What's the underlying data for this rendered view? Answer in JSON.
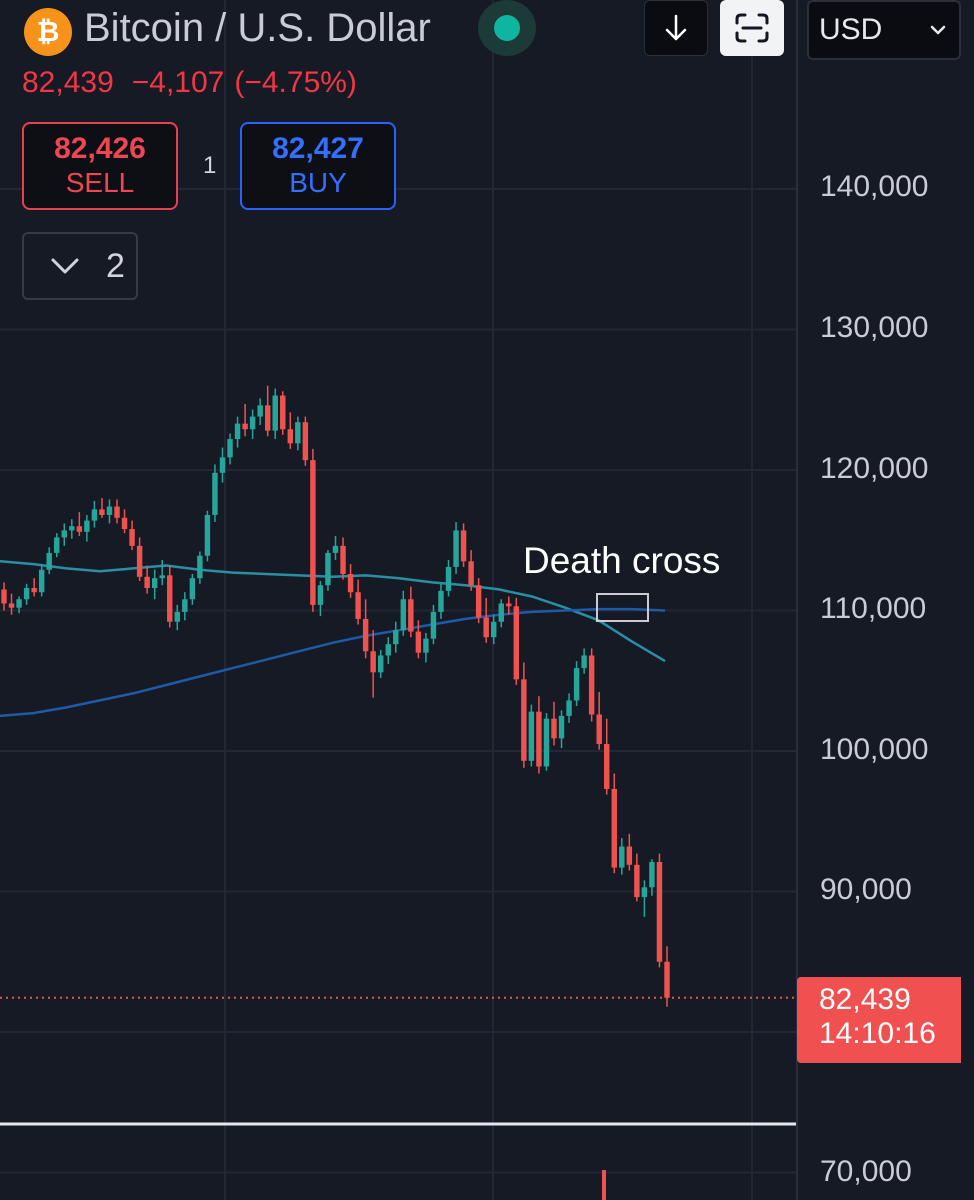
{
  "header": {
    "logo_glyph": "₿",
    "logo_icon": "bitcoin-logo-icon",
    "symbol_title": "Bitcoin / U.S. Dollar",
    "live_indicator_color": "#0fb59f",
    "download_icon": "arrow-down-icon",
    "fullscreen_icon": "fullscreen-icon",
    "currency": "USD",
    "currency_icon": "chevron-down-icon"
  },
  "quote": {
    "last_price": "82,439",
    "change": "−4,107",
    "change_percent": "(−4.75%)",
    "change_color": "#f23645"
  },
  "trade": {
    "sell_price": "82,426",
    "sell_label": "SELL",
    "spread": "1",
    "buy_price": "82,427",
    "buy_label": "BUY"
  },
  "indicators_toggle": {
    "icon": "chevron-down-icon",
    "count": "2"
  },
  "annotation": {
    "text": "Death cross"
  },
  "price_label": {
    "price": "82,439",
    "countdown": "14:10:16",
    "color": "#f0504f"
  },
  "chart_data": {
    "type": "candlestick",
    "y_axis_ticks": [
      "140,000",
      "130,000",
      "120,000",
      "110,000",
      "100,000",
      "90,000",
      "70,000"
    ],
    "y_axis_tick_values": [
      140000,
      130000,
      120000,
      110000,
      100000,
      90000,
      70000
    ],
    "ylim": [
      66000,
      153000
    ],
    "last_price": 82439,
    "up_color": "#26a69a",
    "down_color": "#ef5350",
    "grid": true,
    "series": [
      {
        "type": "ma",
        "color": "#2a8fa3",
        "values": [
          113500,
          113300,
          113000,
          112800,
          113000,
          113200,
          112900,
          112700,
          112600,
          112500,
          112400,
          112500,
          112300,
          112000,
          111800,
          111500,
          111000,
          110200,
          109300,
          107800,
          106400
        ]
      },
      {
        "type": "ma",
        "color": "#1e5aa8",
        "values": [
          102500,
          102700,
          103100,
          103600,
          104100,
          104700,
          105300,
          105900,
          106500,
          107100,
          107700,
          108200,
          108600,
          109000,
          109400,
          109700,
          109900,
          110000,
          110100,
          110100,
          110000
        ]
      }
    ],
    "candles": [
      [
        111500,
        112000,
        110000,
        110500
      ],
      [
        110500,
        111200,
        109700,
        110200
      ],
      [
        110200,
        111000,
        109800,
        110800
      ],
      [
        110800,
        111900,
        110400,
        111600
      ],
      [
        111600,
        112300,
        111000,
        111300
      ],
      [
        111300,
        113300,
        111000,
        112900
      ],
      [
        112900,
        114500,
        112600,
        114100
      ],
      [
        114100,
        115500,
        113800,
        115200
      ],
      [
        115200,
        116200,
        114600,
        115700
      ],
      [
        115700,
        116500,
        115100,
        116000
      ],
      [
        116000,
        117000,
        115300,
        115600
      ],
      [
        115600,
        116800,
        114900,
        116400
      ],
      [
        116400,
        117800,
        115900,
        117200
      ],
      [
        117200,
        118000,
        116600,
        116800
      ],
      [
        116800,
        117900,
        116200,
        117400
      ],
      [
        117400,
        117900,
        116200,
        116600
      ],
      [
        116600,
        117200,
        115500,
        115800
      ],
      [
        115800,
        116400,
        114300,
        114600
      ],
      [
        114600,
        115200,
        112100,
        112400
      ],
      [
        112400,
        113200,
        111200,
        111600
      ],
      [
        111600,
        112900,
        110800,
        112300
      ],
      [
        112300,
        113600,
        111800,
        112500
      ],
      [
        112500,
        113200,
        108800,
        109200
      ],
      [
        109200,
        110400,
        108600,
        109900
      ],
      [
        109900,
        111300,
        109300,
        110800
      ],
      [
        110800,
        112600,
        110400,
        112300
      ],
      [
        112300,
        114200,
        111900,
        113900
      ],
      [
        113900,
        117100,
        113500,
        116800
      ],
      [
        116800,
        120400,
        116300,
        119800
      ],
      [
        119800,
        121600,
        119100,
        120900
      ],
      [
        120900,
        122600,
        120400,
        122200
      ],
      [
        122200,
        123800,
        121600,
        123300
      ],
      [
        123300,
        124700,
        122400,
        122900
      ],
      [
        122900,
        124300,
        122200,
        123800
      ],
      [
        123800,
        125100,
        123200,
        124600
      ],
      [
        124600,
        126000,
        122400,
        122800
      ],
      [
        122800,
        125800,
        122200,
        125300
      ],
      [
        125300,
        125600,
        122500,
        122900
      ],
      [
        122900,
        124100,
        121500,
        121900
      ],
      [
        121900,
        123800,
        121400,
        123400
      ],
      [
        123400,
        123800,
        120300,
        120700
      ],
      [
        120700,
        121500,
        109900,
        110400
      ],
      [
        110400,
        112100,
        109600,
        111800
      ],
      [
        111800,
        114300,
        111400,
        114100
      ],
      [
        114100,
        115300,
        113600,
        114600
      ],
      [
        114600,
        115200,
        112200,
        112600
      ],
      [
        112600,
        113300,
        110900,
        111300
      ],
      [
        111300,
        112200,
        109000,
        109400
      ],
      [
        109400,
        110800,
        106600,
        107100
      ],
      [
        107100,
        108600,
        103800,
        105600
      ],
      [
        105600,
        107200,
        105200,
        106800
      ],
      [
        106800,
        108100,
        106200,
        107600
      ],
      [
        107600,
        109200,
        107000,
        108600
      ],
      [
        108600,
        111400,
        108200,
        110800
      ],
      [
        110800,
        111700,
        108100,
        108500
      ],
      [
        108500,
        109300,
        106600,
        107000
      ],
      [
        107000,
        108400,
        106300,
        108000
      ],
      [
        108000,
        110400,
        107600,
        109900
      ],
      [
        109900,
        111900,
        109400,
        111400
      ],
      [
        111400,
        113600,
        111000,
        113100
      ],
      [
        113100,
        116300,
        112600,
        115700
      ],
      [
        115700,
        116200,
        113100,
        113500
      ],
      [
        113500,
        114300,
        111400,
        111800
      ],
      [
        111800,
        112300,
        109100,
        109500
      ],
      [
        109500,
        110900,
        107700,
        108100
      ],
      [
        108100,
        109700,
        107600,
        109200
      ],
      [
        109200,
        110800,
        108800,
        110500
      ],
      [
        110500,
        111000,
        109700,
        110300
      ],
      [
        110300,
        110900,
        104700,
        105100
      ],
      [
        105100,
        106300,
        98800,
        99300
      ],
      [
        99300,
        103300,
        98900,
        102800
      ],
      [
        102800,
        103900,
        98400,
        98900
      ],
      [
        98900,
        102700,
        98600,
        102300
      ],
      [
        102300,
        103500,
        100400,
        100900
      ],
      [
        100900,
        102900,
        100200,
        102500
      ],
      [
        102500,
        104100,
        102000,
        103600
      ],
      [
        103600,
        106400,
        103200,
        105900
      ],
      [
        105900,
        107300,
        105500,
        106800
      ],
      [
        106800,
        107300,
        102100,
        102600
      ],
      [
        102600,
        104200,
        100100,
        100500
      ],
      [
        100500,
        102300,
        96900,
        97300
      ],
      [
        97300,
        98400,
        91300,
        91700
      ],
      [
        91700,
        93800,
        91200,
        93200
      ],
      [
        93200,
        94100,
        91500,
        91900
      ],
      [
        91900,
        92700,
        89300,
        89600
      ],
      [
        89600,
        90800,
        88200,
        90300
      ],
      [
        90300,
        92300,
        89700,
        92100
      ],
      [
        92100,
        92700,
        84600,
        85000
      ],
      [
        85000,
        86100,
        81800,
        82439
      ]
    ]
  }
}
